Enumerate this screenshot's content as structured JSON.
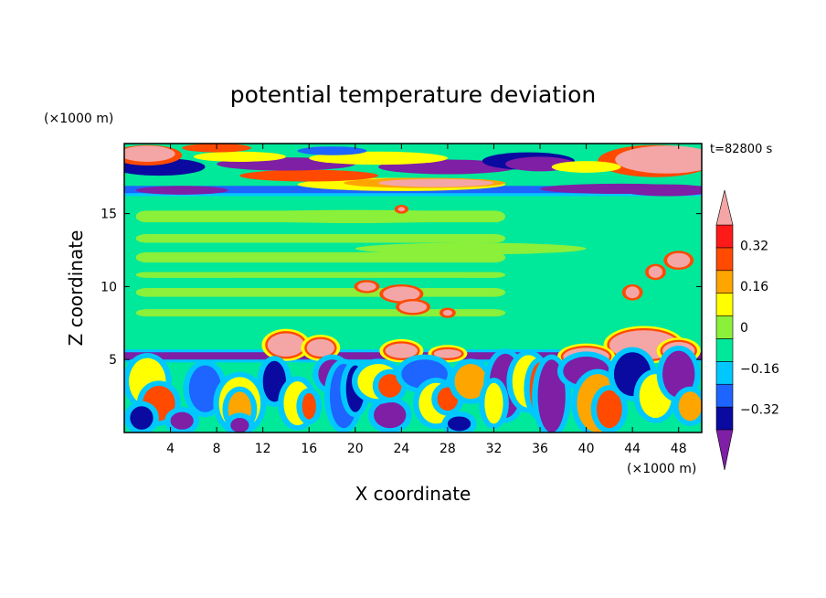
{
  "chart_data": {
    "type": "heatmap",
    "title": "potential temperature deviation",
    "xlabel": "X coordinate",
    "ylabel": "Z coordinate",
    "x_unit": "(×1000 m)",
    "y_unit": "(×1000 m)",
    "time_label": "t=82800 s",
    "xlim": [
      0,
      50
    ],
    "ylim": [
      0,
      19.8
    ],
    "x_ticks": [
      4,
      8,
      12,
      16,
      20,
      24,
      28,
      32,
      36,
      40,
      44,
      48
    ],
    "x_tick_labels": [
      "4",
      "8",
      "12",
      "16",
      "20",
      "24",
      "28",
      "32",
      "36",
      "40",
      "44",
      "48"
    ],
    "y_ticks": [
      5,
      10,
      15
    ],
    "y_tick_labels": [
      "5",
      "10",
      "15"
    ],
    "colorbar": {
      "levels": [
        -0.4,
        -0.32,
        -0.24,
        -0.16,
        -0.08,
        0,
        0.08,
        0.16,
        0.24,
        0.32,
        0.4
      ],
      "labeled_ticks": [
        0.32,
        0.16,
        0,
        -0.16,
        -0.32
      ],
      "tick_labels": [
        "0.32",
        "0.16",
        "0",
        "−0.16",
        "−0.32"
      ],
      "colors_low_to_high": [
        "#7e1fa5",
        "#0a0aa0",
        "#1e64ff",
        "#00c8ff",
        "#00e89a",
        "#8af03a",
        "#ffff00",
        "#ffa500",
        "#ff4a00",
        "#ff1a1a",
        "#f4a6a6"
      ],
      "extend": "both"
    },
    "features": [
      {
        "region": "upper layer",
        "z_range": [
          16.3,
          19.8
        ],
        "pattern": "alternating positive and negative bands",
        "value_range": [
          -0.45,
          0.45
        ]
      },
      {
        "region": "middle layer",
        "z_range": [
          5.8,
          16.3
        ],
        "pattern": "near zero",
        "value_range": [
          -0.02,
          0.12
        ],
        "notes": "isolated positive patches near x=24, x=44-50"
      },
      {
        "region": "inversion band",
        "z": 5.2,
        "pattern": "strong negative band",
        "value": -0.4
      },
      {
        "region": "lower layer",
        "z_range": [
          0,
          5
        ],
        "pattern": "convective cells, both signs",
        "value_range": [
          -0.45,
          0.45
        ]
      }
    ]
  },
  "colors": {
    "frame": "#000000",
    "background": "#ffffff"
  }
}
